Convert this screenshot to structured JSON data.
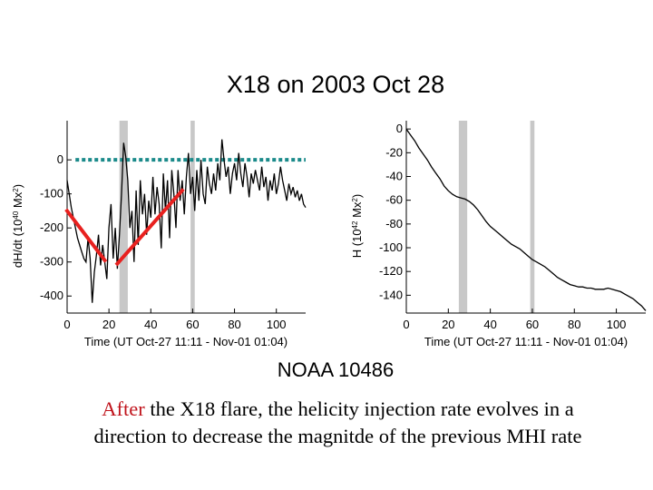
{
  "slide": {
    "title": "X18 on 2003 Oct 28",
    "region": "NOAA 10486",
    "caption_highlight": "After",
    "caption_rest": " the X18 flare, the helicity injection rate evolves in a direction  to decrease  the magnitde of the previous MHI rate",
    "highlight_color": "#c0141c"
  },
  "chart_data": [
    {
      "type": "line",
      "ylabel": "dH/dt (10^40 Mx^2)",
      "ylabel_parts": [
        "dH/dt (10",
        "40",
        " Mx",
        "2",
        ")"
      ],
      "xlabel": "Time (UT Oct-27 11:11 - Nov-01 01:04)",
      "xlim": [
        0,
        114
      ],
      "ylim": [
        -450,
        115
      ],
      "xticks": [
        0,
        20,
        40,
        60,
        80,
        100
      ],
      "yticks": [
        0,
        -100,
        -200,
        -300,
        -400
      ],
      "shaded_bands": [
        [
          25,
          29
        ],
        [
          59,
          61
        ]
      ],
      "series": [
        {
          "name": "dH/dt",
          "color": "#000000",
          "x": [
            0,
            1,
            2,
            3,
            4,
            5,
            6,
            7,
            8,
            9,
            10,
            11,
            12,
            13,
            14,
            15,
            16,
            17,
            18,
            19,
            20,
            21,
            22,
            23,
            24,
            25,
            26,
            27,
            28,
            29,
            30,
            31,
            32,
            33,
            34,
            35,
            36,
            37,
            38,
            39,
            40,
            41,
            42,
            43,
            44,
            45,
            46,
            47,
            48,
            49,
            50,
            51,
            52,
            53,
            54,
            55,
            56,
            57,
            58,
            59,
            60,
            61,
            62,
            63,
            64,
            65,
            66,
            67,
            68,
            69,
            70,
            71,
            72,
            73,
            74,
            75,
            76,
            77,
            78,
            79,
            80,
            81,
            82,
            83,
            84,
            85,
            86,
            87,
            88,
            89,
            90,
            91,
            92,
            93,
            94,
            95,
            96,
            97,
            98,
            99,
            100,
            101,
            102,
            103,
            104,
            105,
            106,
            107,
            108,
            109,
            110,
            111,
            112,
            113,
            114
          ],
          "values": [
            -60,
            -100,
            -140,
            -170,
            -200,
            -230,
            -250,
            -270,
            -290,
            -300,
            -230,
            -290,
            -420,
            -330,
            -280,
            -220,
            -310,
            -250,
            -300,
            -350,
            -200,
            -130,
            -290,
            -200,
            -320,
            -220,
            -100,
            50,
            10,
            -60,
            -200,
            -150,
            -300,
            -90,
            -250,
            -60,
            -160,
            -100,
            -220,
            -120,
            -170,
            -50,
            -160,
            -80,
            -130,
            -260,
            -40,
            -150,
            -60,
            -230,
            -30,
            -100,
            -200,
            -30,
            -120,
            -60,
            -160,
            -50,
            20,
            -100,
            -50,
            -150,
            -30,
            -120,
            0,
            -100,
            -130,
            -20,
            -70,
            -100,
            -40,
            -90,
            -10,
            -60,
            60,
            0,
            -50,
            -20,
            -100,
            -40,
            -10,
            -60,
            20,
            -40,
            -80,
            -10,
            -50,
            -110,
            -40,
            -70,
            -30,
            -60,
            -90,
            -20,
            -80,
            -50,
            -120,
            -60,
            -90,
            -40,
            -100,
            -70,
            -20,
            -60,
            -90,
            -120,
            -70,
            -100,
            -80,
            -110,
            -90,
            -120,
            -100,
            -130,
            -140
          ]
        }
      ],
      "reference_line": {
        "y": 0,
        "color": "#1a8a8a",
        "style": "dotted",
        "x_range": [
          4,
          114
        ]
      },
      "annotation_lines": [
        {
          "color": "#e8211f",
          "points": [
            [
              0,
              -150
            ],
            [
              18,
              -295
            ]
          ]
        },
        {
          "color": "#e8211f",
          "points": [
            [
              24,
              -305
            ],
            [
              55,
              -90
            ]
          ]
        }
      ]
    },
    {
      "type": "line",
      "ylabel": "H (10^42 Mx^2)",
      "ylabel_parts": [
        "H (10",
        "42",
        " Mx",
        "2",
        ")"
      ],
      "xlabel": "Time (UT Oct-27 11:11 - Nov-01 01:04)",
      "xlim": [
        0,
        114
      ],
      "ylim": [
        -155,
        7
      ],
      "xticks": [
        0,
        20,
        40,
        60,
        80,
        100
      ],
      "yticks": [
        0,
        -20,
        -40,
        -60,
        -80,
        -100,
        -120,
        -140
      ],
      "shaded_bands": [
        [
          25,
          29
        ],
        [
          59,
          61
        ]
      ],
      "series": [
        {
          "name": "H",
          "color": "#000000",
          "x": [
            0,
            2,
            4,
            6,
            8,
            10,
            12,
            14,
            16,
            18,
            20,
            22,
            24,
            26,
            28,
            30,
            32,
            34,
            36,
            38,
            40,
            42,
            44,
            46,
            48,
            50,
            52,
            54,
            56,
            58,
            60,
            62,
            64,
            66,
            68,
            70,
            72,
            74,
            76,
            78,
            80,
            82,
            84,
            86,
            88,
            90,
            92,
            94,
            96,
            98,
            100,
            102,
            104,
            106,
            108,
            110,
            112,
            114
          ],
          "values": [
            0,
            -5,
            -10,
            -16,
            -21,
            -26,
            -32,
            -37,
            -42,
            -48,
            -52,
            -55,
            -57,
            -58,
            -59,
            -61,
            -64,
            -68,
            -73,
            -78,
            -82,
            -85,
            -88,
            -91,
            -94,
            -97,
            -99,
            -101,
            -104,
            -107,
            -110,
            -112,
            -114,
            -116,
            -119,
            -122,
            -125,
            -127,
            -129,
            -131,
            -132,
            -133,
            -133,
            -134,
            -134,
            -135,
            -135,
            -135,
            -134,
            -135,
            -136,
            -137,
            -139,
            -141,
            -143,
            -146,
            -149,
            -153
          ]
        }
      ]
    }
  ]
}
